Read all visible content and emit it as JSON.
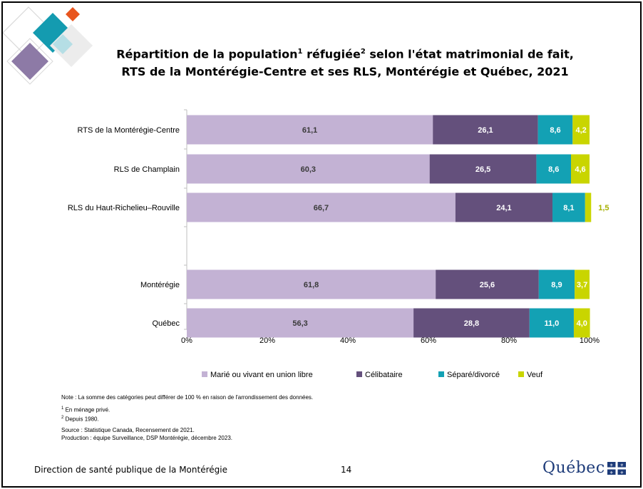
{
  "header": {
    "title_line1_a": "Répartition de la population",
    "title_sup1": "1",
    "title_line1_b": " réfugiée",
    "title_sup2": "2",
    "title_line1_c": " selon l'état matrimonial de fait,",
    "title_line2": "RTS de la Montérégie-Centre et ses RLS, Montérégie et Québec, 2021"
  },
  "chart_data": {
    "type": "bar",
    "orientation": "horizontal",
    "stacked": true,
    "categories": [
      "RTS de la Montérégie-Centre",
      "RLS de Champlain",
      "RLS du Haut-Richelieu–Rouville",
      "Montérégie",
      "Québec"
    ],
    "series": [
      {
        "name": "Marié ou vivant en union libre",
        "color": "#c3b2d4",
        "values": [
          61.1,
          60.3,
          66.7,
          61.8,
          56.3
        ],
        "labels": [
          "61,1",
          "60,3",
          "66,7",
          "61,8",
          "56,3"
        ]
      },
      {
        "name": "Célibataire",
        "color": "#64507c",
        "values": [
          26.1,
          26.5,
          24.1,
          25.6,
          28.8
        ],
        "labels": [
          "26,1",
          "26,5",
          "24,1",
          "25,6",
          "28,8"
        ]
      },
      {
        "name": "Séparé/divorcé",
        "color": "#13a1b4",
        "values": [
          8.6,
          8.6,
          8.1,
          8.9,
          11.0
        ],
        "labels": [
          "8,6",
          "8,6",
          "8,1",
          "8,9",
          "11,0"
        ]
      },
      {
        "name": "Veuf",
        "color": "#c9d500",
        "values": [
          4.2,
          4.6,
          1.5,
          3.7,
          4.0
        ],
        "labels": [
          "4,2",
          "4,6",
          "1,5",
          "3,7",
          "4,0"
        ]
      }
    ],
    "xlim": [
      0,
      100
    ],
    "x_ticks": [
      "0%",
      "20%",
      "40%",
      "60%",
      "80%",
      "100%"
    ],
    "legend_position": "bottom",
    "grid": false
  },
  "notes": {
    "note": "Note : La somme des catégories peut différer de 100 % en raison de l'arrondissement des données.",
    "fn1_num": "1",
    "fn1_text": " En ménage privé.",
    "fn2_num": "2",
    "fn2_text": " Depuis 1980.",
    "source": "Source : Statistique Canada, Recensement de 2021.",
    "production": "Production : équipe Surveillance, DSP Montérégie, décembre 2023."
  },
  "footer": {
    "organization": "Direction de santé publique de la Montérégie",
    "page_number": "14",
    "brand": "Québec"
  }
}
